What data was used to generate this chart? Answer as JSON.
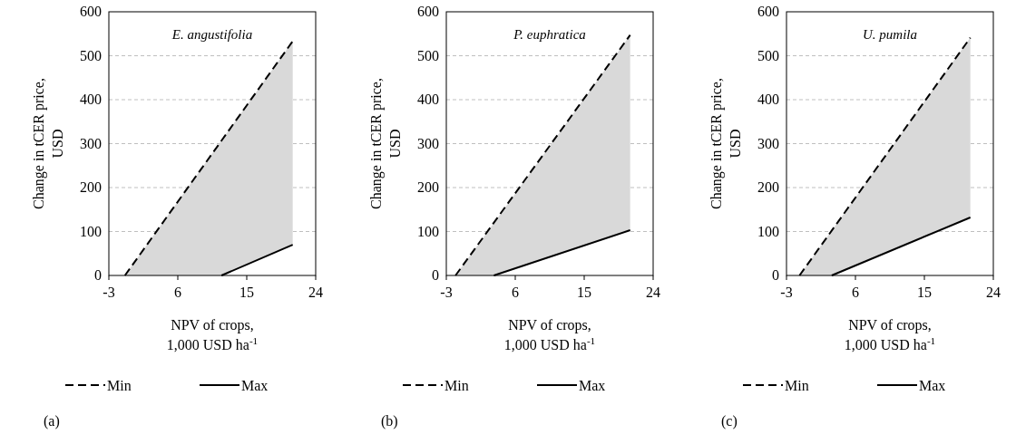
{
  "chart_data": [
    {
      "type": "line",
      "title": "E. angustifolia",
      "xlabel": "NPV of crops,\n1,000 USD ha$^{-1}$",
      "ylabel": "Change in tCER price,\nUSD",
      "xlim": [
        -3,
        24
      ],
      "xticks": [
        -3,
        6,
        15,
        24
      ],
      "ylim": [
        0,
        600
      ],
      "yticks": [
        0,
        100,
        200,
        300,
        400,
        500,
        600
      ],
      "grid": "y",
      "legend": "bottom",
      "annotations": [
        "(a)"
      ],
      "series": [
        {
          "name": "Min",
          "color": "#000000",
          "line_style": "dashed",
          "x": [
            -0.9,
            21
          ],
          "values": [
            0,
            533
          ]
        },
        {
          "name": "Max",
          "color": "#000000",
          "line_style": "solid",
          "x": [
            -0.9,
            11.7,
            21
          ],
          "values": [
            null,
            0,
            70
          ],
          "lower": [
            0,
            0,
            70
          ],
          "upper": [
            0,
            307,
            533
          ]
        }
      ]
    },
    {
      "type": "line",
      "title": "P. euphratica",
      "xlabel": "NPV of crops,\n1,000 USD ha$^{-1}$",
      "ylabel": "Change in tCER price,\nUSD",
      "xlim": [
        -3,
        24
      ],
      "xticks": [
        -3,
        6,
        15,
        24
      ],
      "ylim": [
        0,
        600
      ],
      "yticks": [
        0,
        100,
        200,
        300,
        400,
        500,
        600
      ],
      "grid": "y",
      "legend": "bottom",
      "annotations": [
        "(b)"
      ],
      "series": [
        {
          "name": "Min",
          "color": "#000000",
          "line_style": "dashed",
          "x": [
            -1.8,
            21
          ],
          "values": [
            0,
            547
          ]
        },
        {
          "name": "Max",
          "color": "#000000",
          "line_style": "solid",
          "x": [
            -1.8,
            3.2,
            21
          ],
          "values": [
            null,
            0,
            103
          ],
          "lower": [
            0,
            0,
            103
          ],
          "upper": [
            0,
            119,
            547
          ]
        }
      ]
    },
    {
      "type": "line",
      "title": "U. pumila",
      "xlabel": "NPV of crops,\n1,000 USD ha$^{-1}$",
      "ylabel": "Change in tCER price,\nUSD",
      "xlim": [
        -3,
        24
      ],
      "xticks": [
        -3,
        6,
        15,
        24
      ],
      "ylim": [
        0,
        600
      ],
      "yticks": [
        0,
        100,
        200,
        300,
        400,
        500,
        600
      ],
      "grid": "y",
      "legend": "bottom",
      "annotations": [
        "(c)"
      ],
      "series": [
        {
          "name": "Min",
          "color": "#000000",
          "line_style": "dashed",
          "x": [
            -1.3,
            21
          ],
          "values": [
            0,
            541
          ]
        },
        {
          "name": "Max",
          "color": "#000000",
          "line_style": "solid",
          "x": [
            -1.3,
            2.9,
            21
          ],
          "values": [
            null,
            0,
            132
          ],
          "lower": [
            0,
            0,
            132
          ],
          "upper": [
            0,
            102,
            541
          ]
        }
      ]
    }
  ]
}
